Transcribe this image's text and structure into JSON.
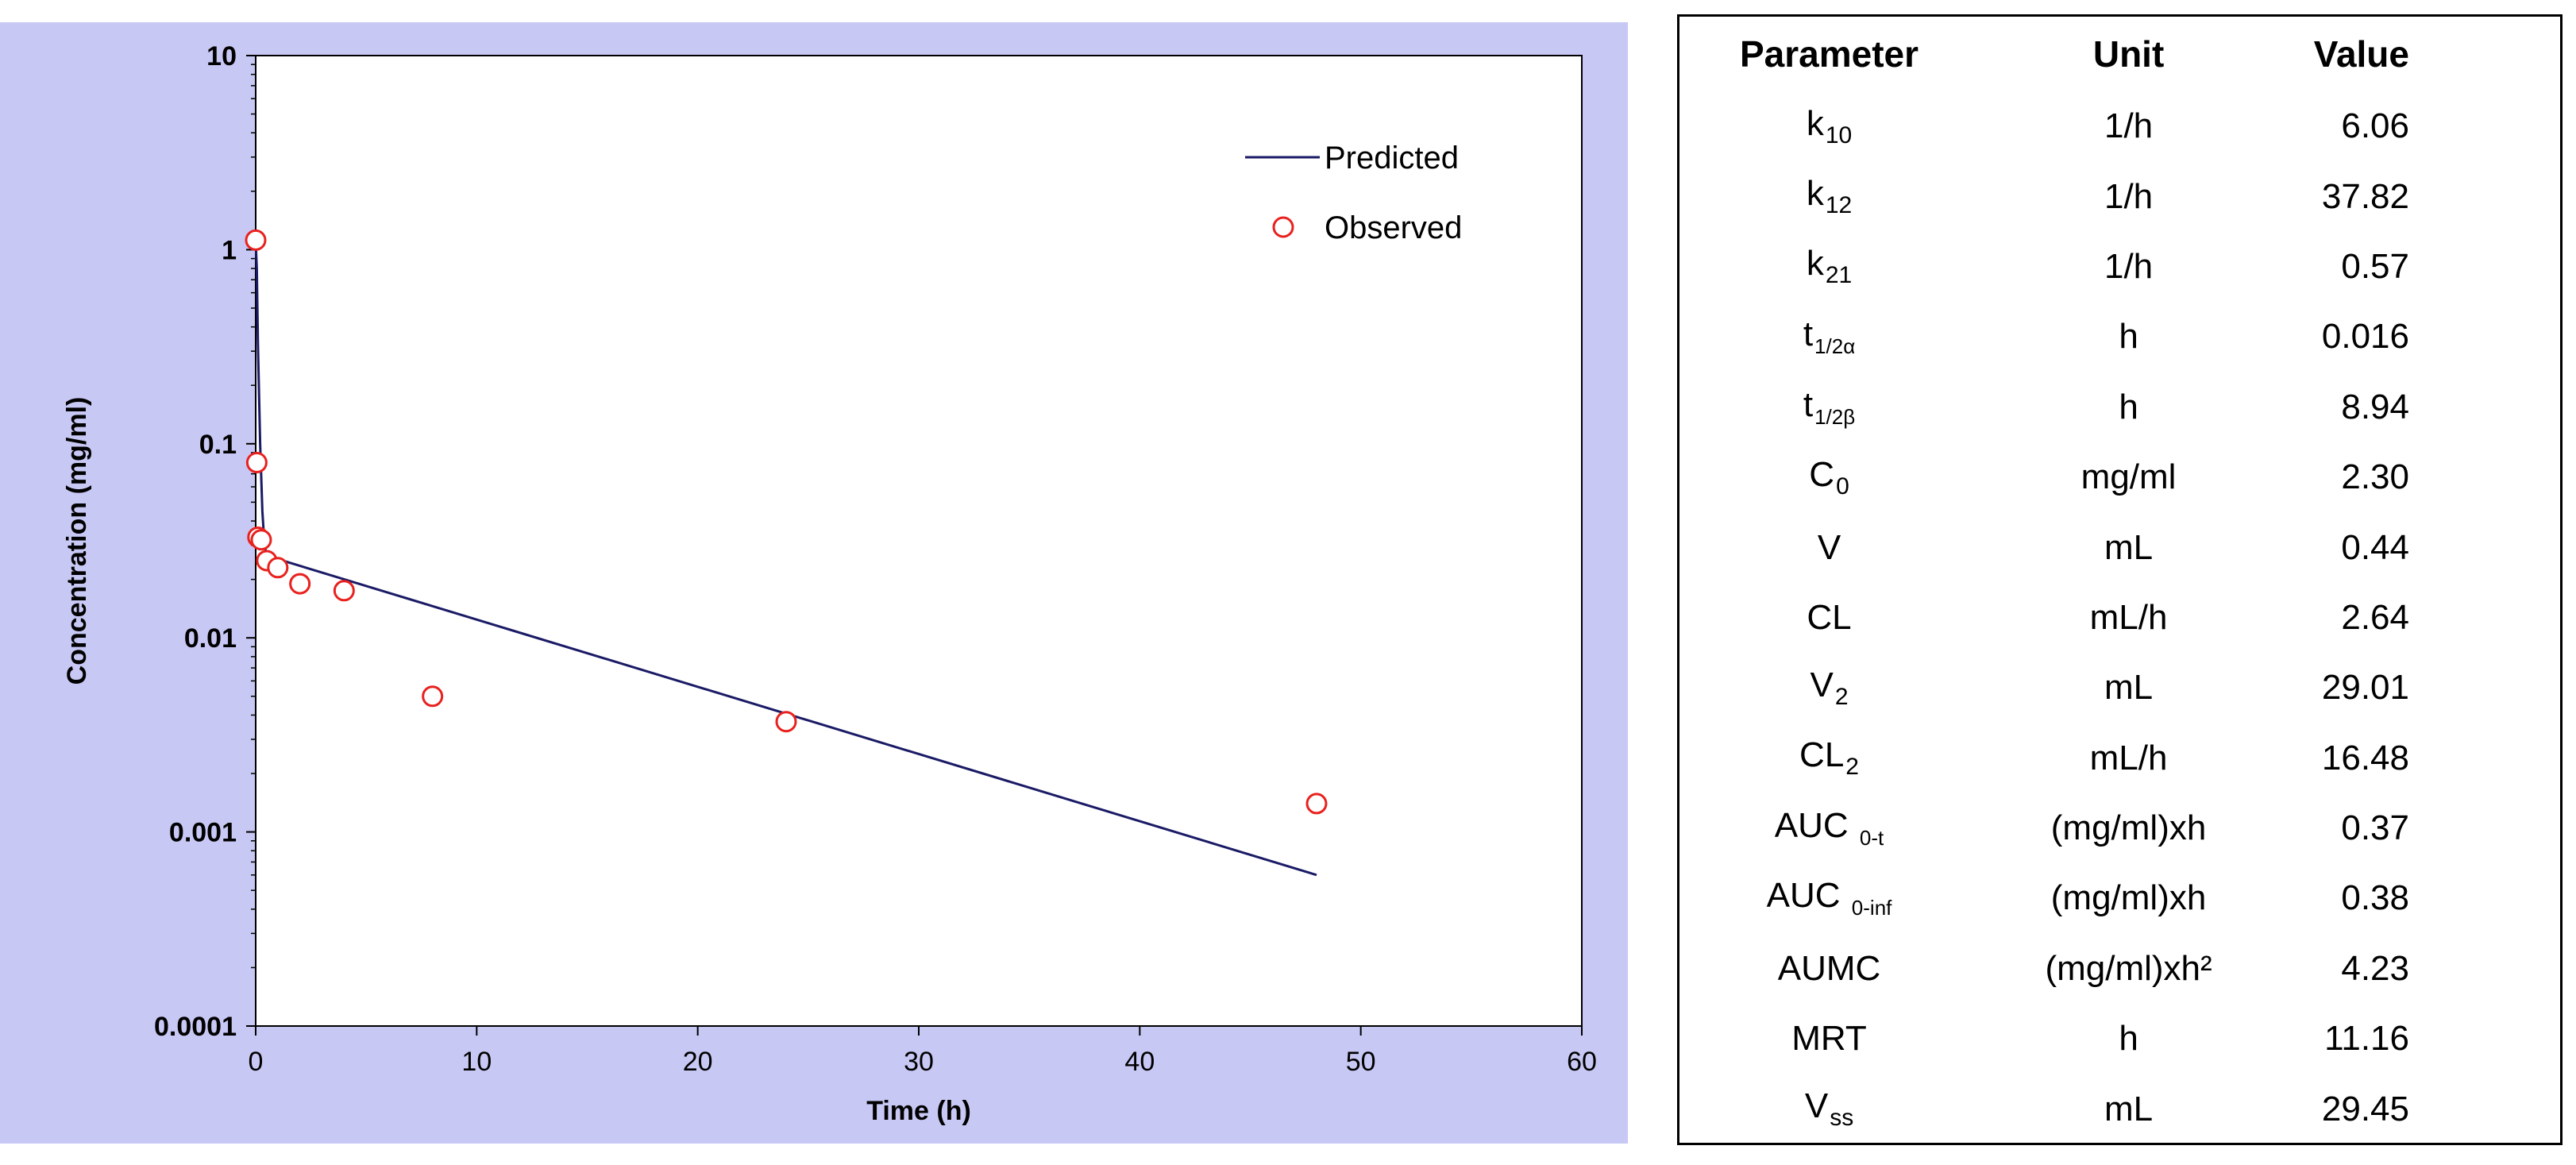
{
  "chart_data": {
    "type": "scatter+line",
    "yscale": "log",
    "xlabel": "Time (h)",
    "ylabel": "Concentration (mg/ml)",
    "xlim": [
      0,
      60
    ],
    "ylim": [
      0.0001,
      10
    ],
    "xticks": [
      0,
      10,
      20,
      30,
      40,
      50,
      60
    ],
    "xtick_labels": [
      "0",
      "10",
      "20",
      "30",
      "40",
      "50",
      "60"
    ],
    "yticks": [
      0.0001,
      0.001,
      0.01,
      0.1,
      1,
      10
    ],
    "ytick_labels": [
      "0.0001",
      "0.001",
      "0.01",
      "0.1",
      "1",
      "10"
    ],
    "legend_position": "top-right",
    "series": [
      {
        "name": "Predicted",
        "kind": "line",
        "color": "#1a1a66",
        "x": [
          0,
          0.05,
          0.1,
          0.2,
          0.3,
          0.4,
          0.5,
          48
        ],
        "y": [
          1.1,
          0.8,
          0.33,
          0.1,
          0.045,
          0.03,
          0.0265,
          0.0006
        ]
      },
      {
        "name": "Observed",
        "kind": "scatter",
        "color": "#e8211e",
        "x": [
          0,
          0.05,
          0.1,
          0.25,
          0.5,
          1,
          2,
          4,
          8,
          24,
          48
        ],
        "y": [
          1.12,
          0.08,
          0.033,
          0.032,
          0.025,
          0.023,
          0.019,
          0.0175,
          0.005,
          0.0037,
          0.0014
        ]
      }
    ],
    "colors": {
      "panel_bg": "#c8c8f5",
      "plot_bg": "#ffffff",
      "axis": "#000000"
    }
  },
  "table": {
    "headers": {
      "parameter": "Parameter",
      "unit": "Unit",
      "value": "Value"
    },
    "rows": [
      {
        "base": "k",
        "sub": "10",
        "unit": "1/h",
        "value": "6.06"
      },
      {
        "base": "k",
        "sub": "12",
        "unit": "1/h",
        "value": "37.82"
      },
      {
        "base": "k",
        "sub": "21",
        "unit": "1/h",
        "value": "0.57"
      },
      {
        "base": "t",
        "sub": "1/2α",
        "unit": "h",
        "value": "0.016"
      },
      {
        "base": "t",
        "sub": "1/2β",
        "unit": "h",
        "value": "8.94"
      },
      {
        "base": "C",
        "sub": "0",
        "unit": "mg/ml",
        "value": "2.30"
      },
      {
        "base": "V",
        "sub": "",
        "unit": "mL",
        "value": "0.44"
      },
      {
        "base": "CL",
        "sub": "",
        "unit": "mL/h",
        "value": "2.64"
      },
      {
        "base": "V",
        "sub": "2",
        "unit": "mL",
        "value": "29.01"
      },
      {
        "base": "CL",
        "sub": "2",
        "unit": "mL/h",
        "value": "16.48"
      },
      {
        "base": "AUC ",
        "sub": "0-t",
        "unit": "(mg/ml)xh",
        "value": "0.37"
      },
      {
        "base": "AUC ",
        "sub": "0-inf",
        "unit": "(mg/ml)xh",
        "value": "0.38"
      },
      {
        "base": "AUMC",
        "sub": "",
        "unit": "(mg/ml)xh²",
        "value": "4.23"
      },
      {
        "base": "MRT",
        "sub": "",
        "unit": "h",
        "value": "11.16"
      },
      {
        "base": "V",
        "sub": "ss",
        "unit": "mL",
        "value": "29.45"
      }
    ]
  }
}
